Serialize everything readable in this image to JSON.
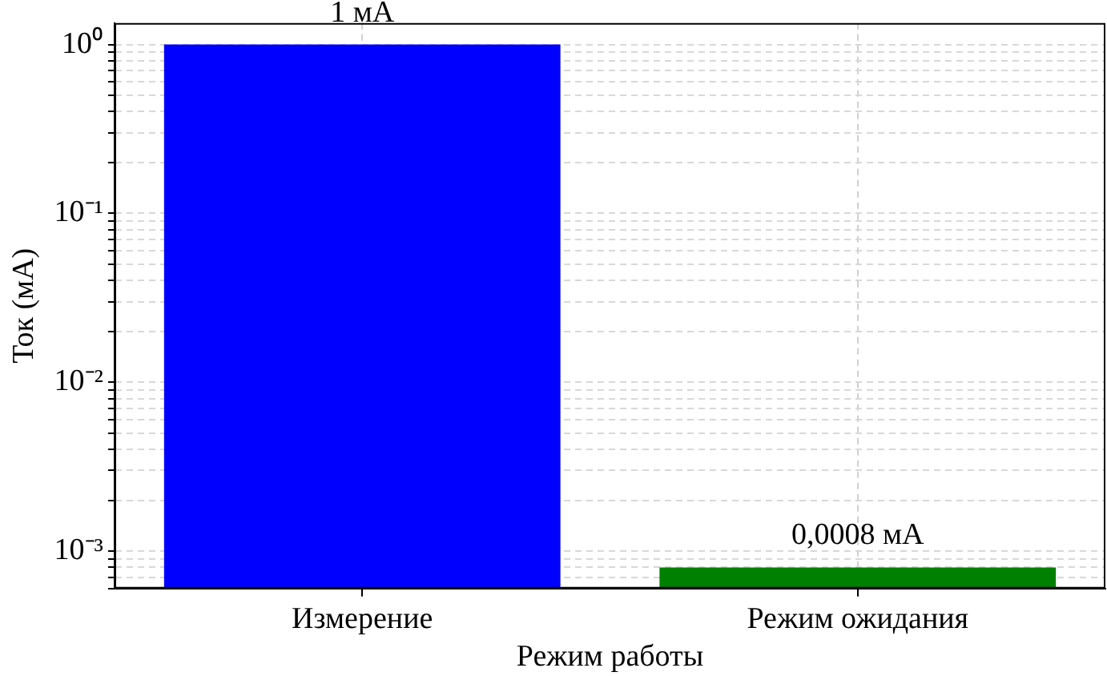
{
  "chart_data": {
    "type": "bar",
    "xlabel": "Режим работы",
    "ylabel": "Ток (мА)",
    "categories": [
      "Измерение",
      "Режим ожидания"
    ],
    "values": [
      1,
      0.0008
    ],
    "colors": [
      "#0000ff",
      "#008000"
    ],
    "value_labels": [
      "1 мА",
      "0,0008 мА"
    ],
    "log": true,
    "grid": true,
    "legend": false,
    "ylim": [
      0.0006,
      1.34
    ],
    "yticks": [
      {
        "value": 0.0006,
        "label": null
      },
      {
        "value": 0.0007,
        "label": null
      },
      {
        "value": 0.0008,
        "label": null
      },
      {
        "value": 0.0009,
        "label": null
      },
      {
        "value": 0.001,
        "label": "10⁻³"
      },
      {
        "value": 0.002,
        "label": null
      },
      {
        "value": 0.003,
        "label": null
      },
      {
        "value": 0.004,
        "label": null
      },
      {
        "value": 0.005,
        "label": null
      },
      {
        "value": 0.006,
        "label": null
      },
      {
        "value": 0.007,
        "label": null
      },
      {
        "value": 0.008,
        "label": null
      },
      {
        "value": 0.009,
        "label": null
      },
      {
        "value": 0.01,
        "label": "10⁻²"
      },
      {
        "value": 0.02,
        "label": null
      },
      {
        "value": 0.03,
        "label": null
      },
      {
        "value": 0.04,
        "label": null
      },
      {
        "value": 0.05,
        "label": null
      },
      {
        "value": 0.06,
        "label": null
      },
      {
        "value": 0.07,
        "label": null
      },
      {
        "value": 0.08,
        "label": null
      },
      {
        "value": 0.09,
        "label": null
      },
      {
        "value": 0.1,
        "label": "10⁻¹"
      },
      {
        "value": 0.2,
        "label": null
      },
      {
        "value": 0.3,
        "label": null
      },
      {
        "value": 0.4,
        "label": null
      },
      {
        "value": 0.5,
        "label": null
      },
      {
        "value": 0.6,
        "label": null
      },
      {
        "value": 0.7,
        "label": null
      },
      {
        "value": 0.8,
        "label": null
      },
      {
        "value": 0.9,
        "label": null
      },
      {
        "value": 1,
        "label": "10⁰"
      }
    ]
  }
}
